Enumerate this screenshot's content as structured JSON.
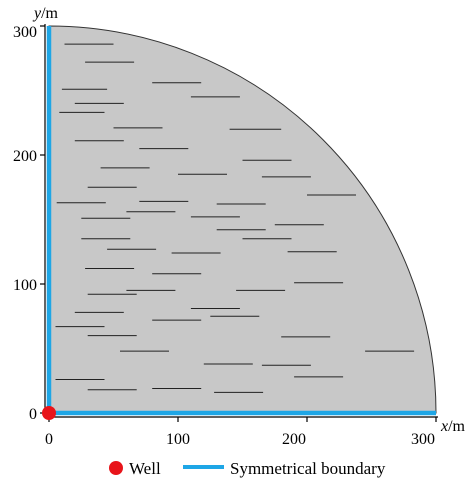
{
  "axes": {
    "x_var": "x",
    "x_unit": "/m",
    "y_var": "y",
    "y_unit": "/m",
    "x_ticks": [
      "0",
      "100",
      "200",
      "300"
    ],
    "y_ticks": [
      "0",
      "100",
      "200",
      "300"
    ]
  },
  "legend": {
    "well_label": "Well",
    "boundary_label": "Symmetrical boundary"
  },
  "colors": {
    "reservoir_fill": "#c8c8c8",
    "boundary": "#1ea6e6",
    "well": "#e8141a",
    "fracture": "#222222"
  },
  "fractures": {
    "x_start_m": [
      12,
      28,
      80,
      10,
      110,
      20,
      8,
      50,
      140,
      20,
      70,
      150,
      40,
      100,
      165,
      30,
      6,
      70,
      130,
      200,
      25,
      60,
      110,
      175,
      25,
      130,
      150,
      45,
      95,
      185,
      28,
      80,
      190,
      30,
      60,
      145,
      20,
      125,
      110,
      5,
      80,
      30,
      180,
      55,
      245,
      120,
      165,
      190,
      5,
      30,
      80,
      128
    ],
    "y_m": [
      286,
      272,
      256,
      251,
      245,
      240,
      233,
      221,
      220,
      211,
      205,
      196,
      190,
      185,
      183,
      175,
      163,
      164,
      162,
      169,
      151,
      156,
      152,
      146,
      135,
      142,
      135,
      127,
      124,
      125,
      112,
      108,
      101,
      92,
      95,
      95,
      78,
      75,
      81,
      67,
      72,
      60,
      59,
      48,
      48,
      38,
      37,
      28,
      26,
      18,
      19,
      16
    ],
    "length_m": [
      38,
      38,
      38,
      35,
      38,
      38,
      35,
      38,
      40,
      38,
      38,
      38,
      38,
      38,
      38,
      38,
      38,
      38,
      38,
      38,
      38,
      38,
      38,
      38,
      38,
      38,
      38,
      38,
      38,
      38,
      38,
      38,
      38,
      38,
      38,
      38,
      38,
      38,
      38,
      38,
      38,
      38,
      38,
      38,
      38,
      38,
      38,
      38,
      38,
      38,
      38,
      38
    ]
  }
}
